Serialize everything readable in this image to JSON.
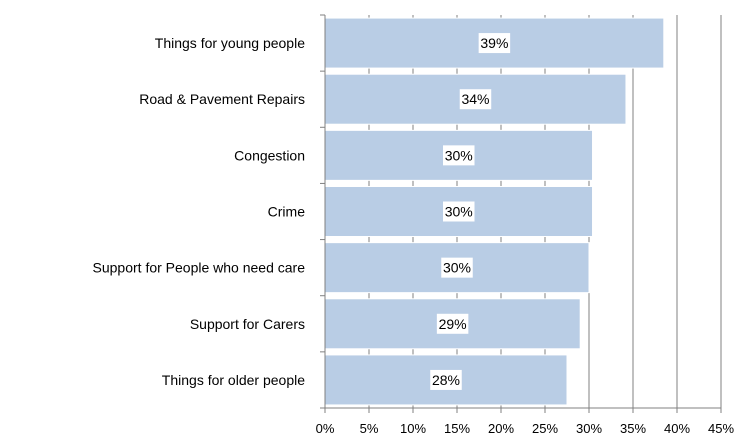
{
  "chart_data": {
    "type": "bar",
    "orientation": "horizontal",
    "categories": [
      "Things for young people",
      "Road & Pavement Repairs",
      "Congestion",
      "Crime",
      "Support for People who need care",
      "Support for Carers",
      "Things for older people"
    ],
    "values": [
      38.5,
      34.2,
      30.4,
      30.4,
      30.0,
      29.0,
      27.5
    ],
    "value_labels": [
      "39%",
      "34%",
      "30%",
      "30%",
      "30%",
      "29%",
      "28%"
    ],
    "x_ticks": [
      0,
      5,
      10,
      15,
      20,
      25,
      30,
      35,
      40,
      45
    ],
    "x_tick_labels": [
      "0%",
      "5%",
      "10%",
      "15%",
      "20%",
      "25%",
      "30%",
      "35%",
      "40%",
      "45%"
    ],
    "xlim": [
      0,
      45
    ],
    "title": "",
    "xlabel": "",
    "ylabel": "",
    "grid": "vertical gridlines at 30%, 35%, 40%, 45%",
    "legend": "none",
    "colors": {
      "bar_fill": "#b9cde5",
      "bar_stroke": "#ffffff",
      "axis": "#808080",
      "grid": "#808080",
      "label_box": "#ffffff"
    }
  }
}
